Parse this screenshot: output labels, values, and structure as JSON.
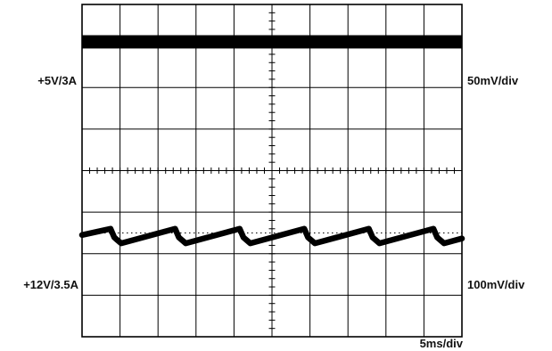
{
  "chart_data": {
    "type": "line",
    "grid": true,
    "divisions": {
      "x": 10,
      "y": 8
    },
    "time_scale": "5ms/div",
    "series": [
      {
        "name": "+5V/3A",
        "scale": "50mV/div",
        "waveform": "flat trace with dense noise",
        "baseline_div": 0.9,
        "thickness_div": 0.32,
        "color": "#000000"
      },
      {
        "name": "+12V/3.5A",
        "scale": "100mV/div",
        "waveform": "sawtooth ripple",
        "period_div": 1.7,
        "first_peak_div": 0.75,
        "high_div": 5.4,
        "low_div": 5.75,
        "reference_div": 5.5,
        "thickness_div": 0.14,
        "color": "#000000"
      }
    ]
  },
  "labels": {
    "left_trace1": "+5V/3A",
    "right_trace1": "50mV/div",
    "left_trace2": "+12V/3.5A",
    "right_trace2": "100mV/div",
    "time_scale": "5ms/div"
  }
}
